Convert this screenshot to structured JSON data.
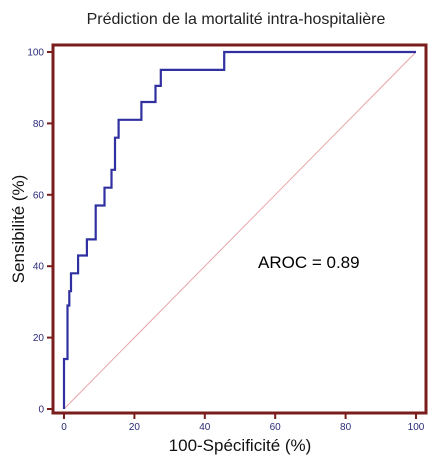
{
  "chart_data": {
    "type": "line",
    "title": "Prédiction de la mortalité intra-hospitalière",
    "xlabel": "100-Spécificité (%)",
    "ylabel": "Sensibilité (%)",
    "xlim": [
      0,
      100
    ],
    "ylim": [
      0,
      100
    ],
    "x_ticks": [
      0,
      20,
      40,
      60,
      80,
      100
    ],
    "y_ticks": [
      0,
      20,
      40,
      60,
      80,
      100
    ],
    "x_tick_labels": [
      "0",
      "20",
      "40",
      "60",
      "80",
      "100"
    ],
    "y_tick_labels": [
      "0",
      "20",
      "40",
      "60",
      "80",
      "100"
    ],
    "grid": false,
    "annotation": "AROC = 0.89",
    "series": [
      {
        "color": "#3030a0",
        "x": [
          0,
          0,
          1,
          1,
          1.5,
          1.5,
          2,
          2,
          4,
          4,
          6.5,
          6.5,
          9,
          9,
          11.5,
          11.5,
          13.5,
          13.5,
          14.5,
          14.5,
          15.5,
          15.5,
          22,
          22,
          26,
          26,
          27.5,
          27.5,
          29,
          29,
          45.5,
          45.5,
          100
        ],
        "y": [
          0,
          14,
          14,
          29,
          29,
          33,
          33,
          38,
          38,
          43,
          43,
          47.5,
          47.5,
          57,
          57,
          62,
          62,
          67,
          67,
          76,
          76,
          81,
          81,
          86,
          86,
          90.5,
          90.5,
          95,
          95,
          95,
          95,
          100,
          100
        ]
      },
      {
        "color": "#e8a6aa",
        "x": [
          0,
          100
        ],
        "y": [
          0,
          100
        ]
      }
    ],
    "colors": {
      "frame": "#7a1d1d",
      "tick_labels": "#2a2a7a"
    }
  }
}
